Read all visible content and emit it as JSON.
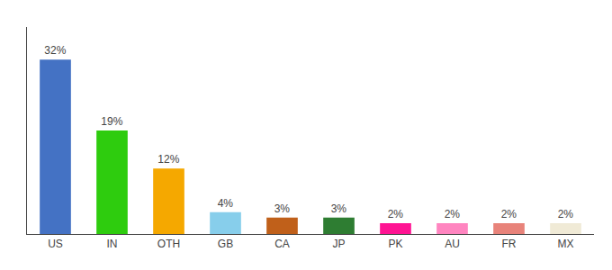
{
  "chart_data": {
    "type": "bar",
    "categories": [
      "US",
      "IN",
      "OTH",
      "GB",
      "CA",
      "JP",
      "PK",
      "AU",
      "FR",
      "MX"
    ],
    "values": [
      32,
      19,
      12,
      4,
      3,
      3,
      2,
      2,
      2,
      2
    ],
    "value_labels": [
      "32%",
      "19%",
      "12%",
      "4%",
      "3%",
      "3%",
      "2%",
      "2%",
      "2%",
      "2%"
    ],
    "colors": [
      "#4472c4",
      "#2ecc0e",
      "#f5a800",
      "#87ceeb",
      "#c0601a",
      "#2e7d32",
      "#ff1493",
      "#ff85c0",
      "#e8837a",
      "#f0ead6"
    ],
    "ylim": [
      0,
      38
    ],
    "data_labels": true,
    "tick_labels": "x",
    "grid": false
  }
}
